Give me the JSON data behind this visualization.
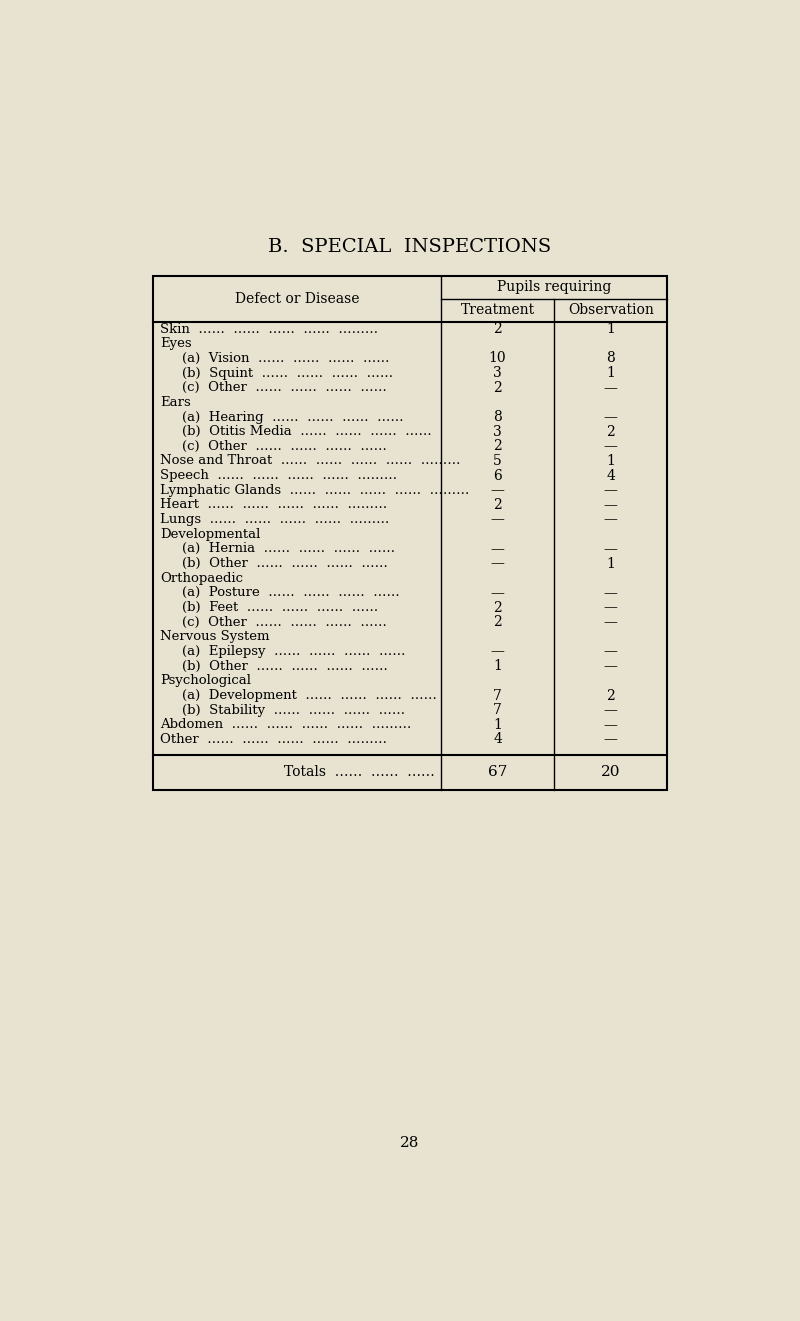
{
  "title": "B.  SPECIAL  INSPECTIONS",
  "page_number": "28",
  "background_color": "#e8e3d0",
  "header_row1": "Pupils requiring",
  "header_col1": "Defect or Disease",
  "header_col2": "Treatment",
  "header_col3": "Observation",
  "rows": [
    {
      "label": "Skin",
      "indent": 0,
      "dots": true,
      "treatment": "2",
      "observation": "1"
    },
    {
      "label": "Eyes",
      "indent": 0,
      "dots": false,
      "treatment": "",
      "observation": ""
    },
    {
      "label": "(a)  Vision",
      "indent": 1,
      "dots": true,
      "treatment": "10",
      "observation": "8"
    },
    {
      "label": "(b)  Squint",
      "indent": 1,
      "dots": true,
      "treatment": "3",
      "observation": "1"
    },
    {
      "label": "(c)  Other",
      "indent": 1,
      "dots": true,
      "treatment": "2",
      "observation": "—"
    },
    {
      "label": "Ears",
      "indent": 0,
      "dots": false,
      "treatment": "",
      "observation": ""
    },
    {
      "label": "(a)  Hearing",
      "indent": 1,
      "dots": true,
      "treatment": "8",
      "observation": "—"
    },
    {
      "label": "(b)  Otitis Media",
      "indent": 1,
      "dots": true,
      "treatment": "3",
      "observation": "2"
    },
    {
      "label": "(c)  Other",
      "indent": 1,
      "dots": true,
      "treatment": "2",
      "observation": "—"
    },
    {
      "label": "Nose and Throat",
      "indent": 0,
      "dots": true,
      "treatment": "5",
      "observation": "1"
    },
    {
      "label": "Speech",
      "indent": 0,
      "dots": true,
      "treatment": "6",
      "observation": "4"
    },
    {
      "label": "Lymphatic Glands",
      "indent": 0,
      "dots": true,
      "treatment": "—",
      "observation": "—"
    },
    {
      "label": "Heart",
      "indent": 0,
      "dots": true,
      "treatment": "2",
      "observation": "—"
    },
    {
      "label": "Lungs",
      "indent": 0,
      "dots": true,
      "treatment": "—",
      "observation": "—"
    },
    {
      "label": "Developmental",
      "indent": 0,
      "dots": false,
      "treatment": "",
      "observation": ""
    },
    {
      "label": "(a)  Hernia",
      "indent": 1,
      "dots": true,
      "treatment": "—",
      "observation": "—"
    },
    {
      "label": "(b)  Other",
      "indent": 1,
      "dots": true,
      "treatment": "—",
      "observation": "1"
    },
    {
      "label": "Orthopaedic",
      "indent": 0,
      "dots": false,
      "treatment": "",
      "observation": ""
    },
    {
      "label": "(a)  Posture",
      "indent": 1,
      "dots": true,
      "treatment": "—",
      "observation": "—"
    },
    {
      "label": "(b)  Feet",
      "indent": 1,
      "dots": true,
      "treatment": "2",
      "observation": "—"
    },
    {
      "label": "(c)  Other",
      "indent": 1,
      "dots": true,
      "treatment": "2",
      "observation": "—"
    },
    {
      "label": "Nervous System",
      "indent": 0,
      "dots": false,
      "treatment": "",
      "observation": ""
    },
    {
      "label": "(a)  Epilepsy",
      "indent": 1,
      "dots": true,
      "treatment": "—",
      "observation": "—"
    },
    {
      "label": "(b)  Other",
      "indent": 1,
      "dots": true,
      "treatment": "1",
      "observation": "—"
    },
    {
      "label": "Psychological",
      "indent": 0,
      "dots": false,
      "treatment": "",
      "observation": ""
    },
    {
      "label": "(a)  Development",
      "indent": 1,
      "dots": true,
      "treatment": "7",
      "observation": "2"
    },
    {
      "label": "(b)  Stability",
      "indent": 1,
      "dots": true,
      "treatment": "7",
      "observation": "—"
    },
    {
      "label": "Abdomen",
      "indent": 0,
      "dots": true,
      "treatment": "1",
      "observation": "—"
    },
    {
      "label": "Other",
      "indent": 0,
      "dots": true,
      "treatment": "4",
      "observation": "—"
    }
  ],
  "totals_label": "Totals",
  "totals_treatment": "67",
  "totals_observation": "20"
}
